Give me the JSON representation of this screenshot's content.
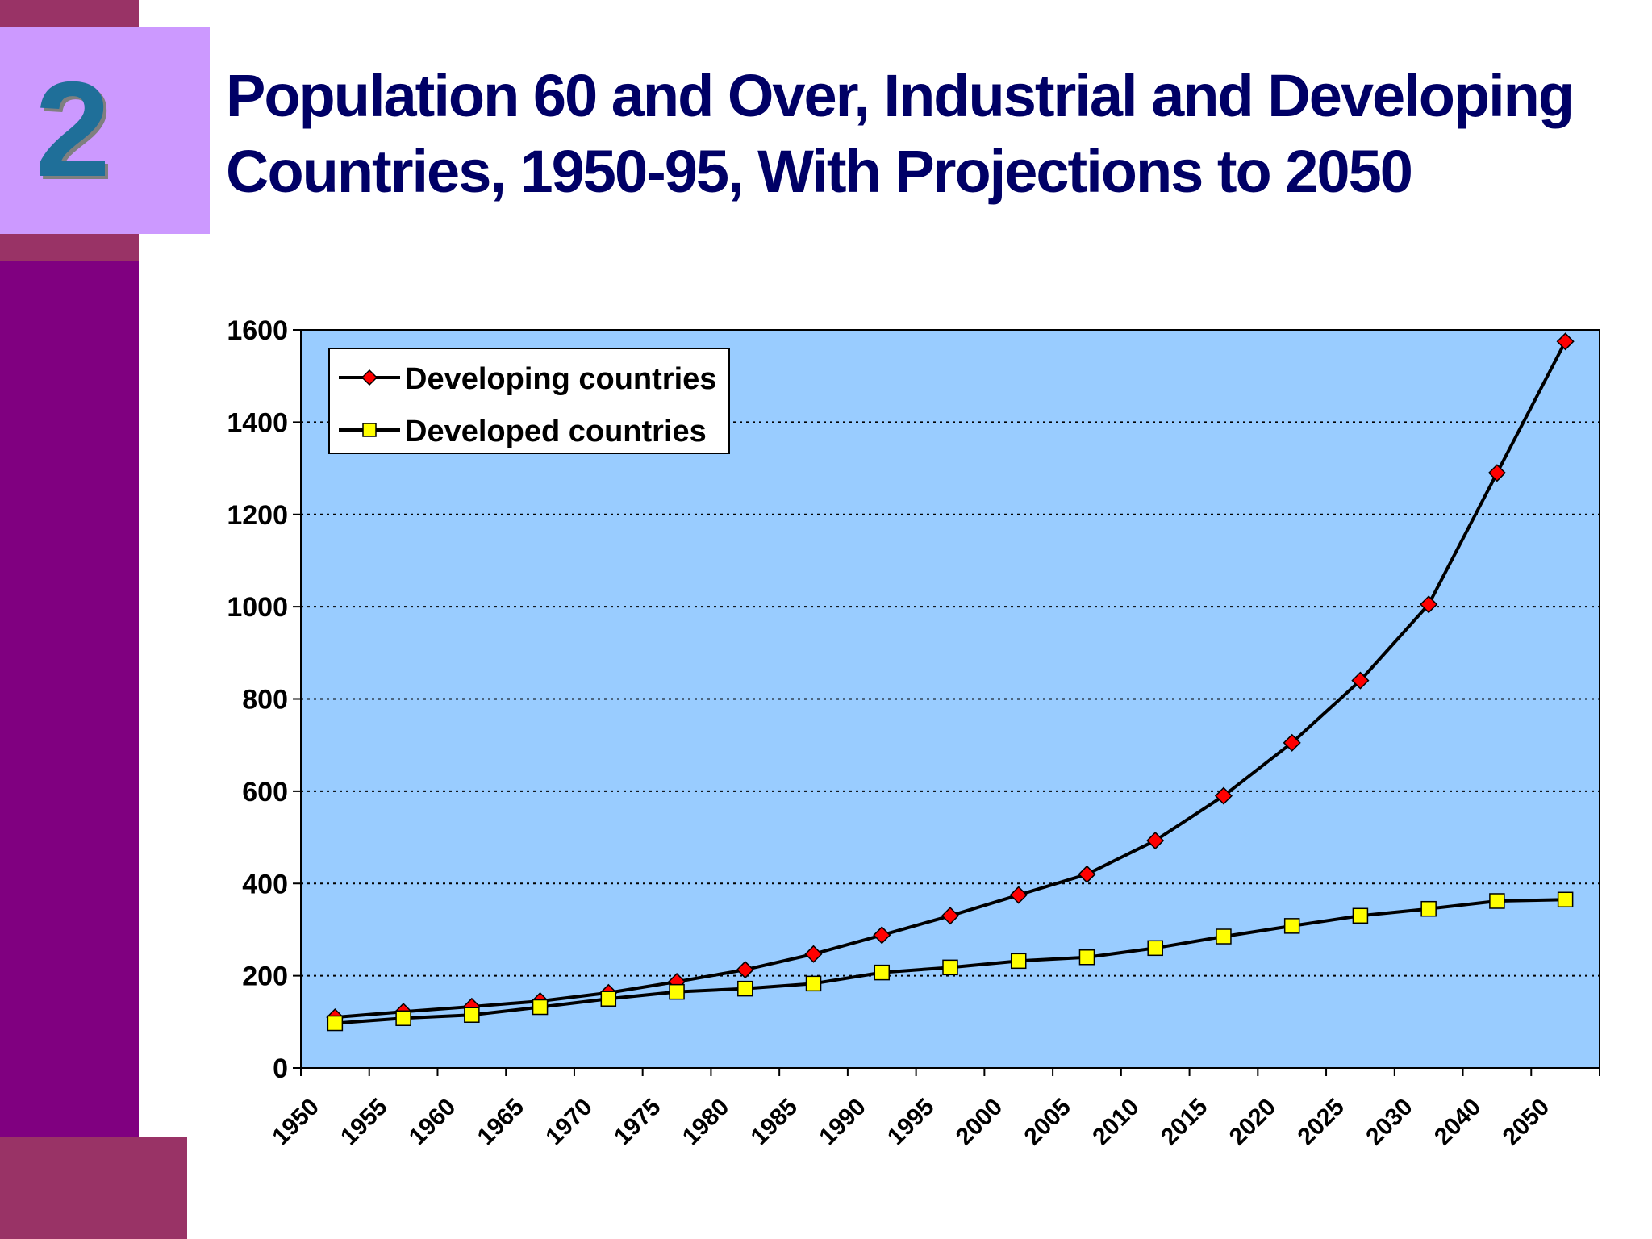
{
  "slide": {
    "number": "2",
    "title_lines": [
      "Population 60 and Over, Industrial and Developing",
      "Countries, 1950-95, With Projections to 2050"
    ]
  },
  "colors": {
    "sidebar": "#800080",
    "sidebar_accent": "#993366",
    "number_box": "#cc99ff",
    "number_text": "#1f6f99",
    "title": "#000066",
    "plot_background": "#99ccff",
    "developing_marker": "#ff0000",
    "developed_marker": "#ffff00",
    "line": "#000000"
  },
  "chart_data": {
    "type": "line",
    "title": "",
    "xlabel": "",
    "ylabel": "",
    "categories": [
      "1950",
      "1955",
      "1960",
      "1965",
      "1970",
      "1975",
      "1980",
      "1985",
      "1990",
      "1995",
      "2000",
      "2005",
      "2010",
      "2015",
      "2020",
      "2025",
      "2030",
      "2040",
      "2050"
    ],
    "ylim": [
      0,
      1600
    ],
    "yticks": [
      "0",
      "200",
      "400",
      "600",
      "800",
      "1000",
      "1200",
      "1400",
      "1600"
    ],
    "grid": "horizontal dotted",
    "legend_position": "top-left",
    "series": [
      {
        "name": "Developing countries",
        "marker": "diamond",
        "values": [
          110,
          122,
          133,
          145,
          163,
          187,
          213,
          247,
          288,
          330,
          375,
          420,
          493,
          590,
          705,
          840,
          1005,
          1290,
          1575
        ]
      },
      {
        "name": "Developed countries",
        "marker": "square",
        "values": [
          97,
          108,
          115,
          132,
          150,
          165,
          172,
          183,
          207,
          218,
          232,
          240,
          260,
          285,
          308,
          330,
          345,
          362,
          365
        ]
      }
    ]
  }
}
